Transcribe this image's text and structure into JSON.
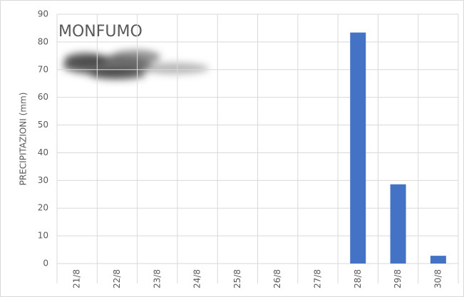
{
  "chart_data": {
    "type": "bar",
    "title": "MONFUMO",
    "y_label": "PRECIPITAZIONI (mm)",
    "categories": [
      "21/8",
      "22/8",
      "23/8",
      "24/8",
      "25/8",
      "26/8",
      "27/8",
      "28/8",
      "29/8",
      "30/8"
    ],
    "values": [
      0,
      0,
      0,
      0,
      0,
      0,
      0,
      83.4,
      28.6,
      2.8
    ],
    "color": "#4472c4",
    "ylim": [
      0,
      90
    ],
    "yticks": [
      0,
      10,
      20,
      30,
      40,
      50,
      60,
      70,
      80,
      90
    ],
    "grid": true
  }
}
